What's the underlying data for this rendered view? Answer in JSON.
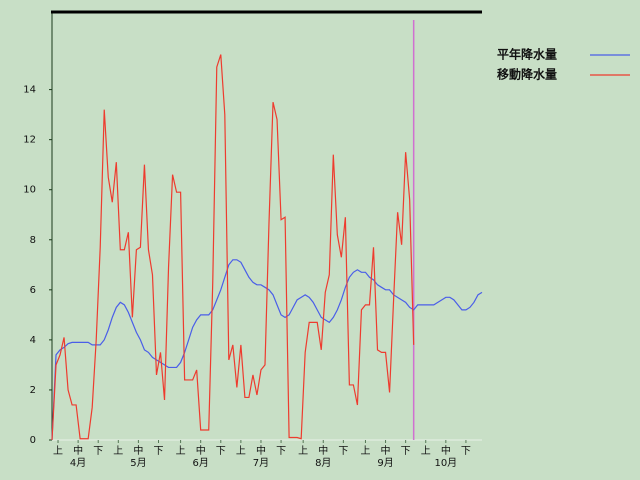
{
  "chart_data": {
    "type": "line",
    "x": [
      0,
      2,
      4,
      6,
      8,
      10,
      12,
      14,
      16,
      18,
      20,
      22,
      24,
      26,
      28,
      30,
      32,
      34,
      36,
      38,
      40,
      42,
      44,
      46,
      48,
      50,
      52,
      54,
      56,
      58,
      60,
      62,
      64,
      66,
      68,
      70,
      72,
      74,
      76,
      78,
      80,
      82,
      84,
      86,
      88,
      90,
      92,
      94,
      96,
      98,
      100,
      102,
      104,
      106,
      108,
      110,
      112,
      114,
      116,
      118,
      120,
      122,
      124,
      126,
      128,
      130,
      132,
      134,
      136,
      138,
      140,
      142,
      144,
      146,
      148,
      150,
      152,
      154,
      156,
      158,
      160,
      162,
      164,
      166,
      168,
      170,
      172,
      174,
      176,
      178,
      180,
      182,
      184,
      186,
      188,
      190,
      192,
      194,
      196,
      198,
      200,
      202,
      204,
      206,
      208,
      210,
      212,
      214
    ],
    "xlim": [
      0,
      214
    ],
    "xticks": [
      {
        "value": 3,
        "label": "上"
      },
      {
        "value": 13,
        "label": "中"
      },
      {
        "value": 23,
        "label": "下"
      },
      {
        "value": 33,
        "label": "上"
      },
      {
        "value": 43,
        "label": "中"
      },
      {
        "value": 53,
        "label": "下"
      },
      {
        "value": 64,
        "label": "上"
      },
      {
        "value": 74,
        "label": "中"
      },
      {
        "value": 84,
        "label": "下"
      },
      {
        "value": 94,
        "label": "上"
      },
      {
        "value": 104,
        "label": "中"
      },
      {
        "value": 114,
        "label": "下"
      },
      {
        "value": 125,
        "label": "上"
      },
      {
        "value": 135,
        "label": "中"
      },
      {
        "value": 145,
        "label": "下"
      },
      {
        "value": 156,
        "label": "上"
      },
      {
        "value": 166,
        "label": "中"
      },
      {
        "value": 176,
        "label": "下"
      },
      {
        "value": 186,
        "label": "上"
      },
      {
        "value": 196,
        "label": "中"
      },
      {
        "value": 206,
        "label": "下"
      }
    ],
    "month_labels": [
      {
        "value": 13,
        "label": "4月"
      },
      {
        "value": 43,
        "label": "5月"
      },
      {
        "value": 74,
        "label": "6月"
      },
      {
        "value": 104,
        "label": "7月"
      },
      {
        "value": 135,
        "label": "8月"
      },
      {
        "value": 166,
        "label": "9月"
      },
      {
        "value": 196,
        "label": "10月"
      }
    ],
    "ylim": [
      0,
      17.1
    ],
    "yticks": [
      0,
      2,
      4,
      6,
      8,
      10,
      12,
      14
    ],
    "legend": "right",
    "vline": {
      "x": 180,
      "color": "#d070d0"
    },
    "series": [
      {
        "name": "平年降水量",
        "color": "#4a5ee8",
        "values": [
          0,
          3.4,
          3.6,
          3.7,
          3.85,
          3.9,
          3.9,
          3.9,
          3.9,
          3.9,
          3.8,
          3.8,
          3.8,
          4.0,
          4.4,
          4.9,
          5.3,
          5.5,
          5.4,
          5.1,
          4.7,
          4.3,
          4.0,
          3.6,
          3.5,
          3.3,
          3.2,
          3.1,
          3.0,
          2.9,
          2.9,
          2.9,
          3.1,
          3.5,
          4.0,
          4.5,
          4.8,
          5.0,
          5.0,
          5.0,
          5.2,
          5.6,
          6.0,
          6.5,
          7.0,
          7.2,
          7.2,
          7.1,
          6.8,
          6.5,
          6.3,
          6.2,
          6.2,
          6.1,
          6.0,
          5.8,
          5.4,
          5.0,
          4.9,
          5.0,
          5.3,
          5.6,
          5.7,
          5.8,
          5.7,
          5.5,
          5.2,
          4.9,
          4.8,
          4.7,
          4.9,
          5.2,
          5.6,
          6.1,
          6.5,
          6.7,
          6.8,
          6.7,
          6.7,
          6.5,
          6.4,
          6.2,
          6.1,
          6.0,
          6.0,
          5.8,
          5.7,
          5.6,
          5.5,
          5.3,
          5.2,
          5.4,
          5.4,
          5.4,
          5.4,
          5.4,
          5.5,
          5.6,
          5.7,
          5.7,
          5.6,
          5.4,
          5.2,
          5.2,
          5.3,
          5.5,
          5.8,
          5.9
        ]
      },
      {
        "name": "移動降水量",
        "color": "#ee3b2e",
        "values": [
          0,
          3.0,
          3.4,
          4.1,
          2.0,
          1.4,
          1.4,
          0.05,
          0.05,
          0.05,
          1.3,
          4.0,
          7.7,
          13.2,
          10.5,
          9.5,
          11.1,
          7.6,
          7.6,
          8.3,
          4.9,
          7.6,
          7.7,
          11.0,
          7.6,
          6.6,
          2.6,
          3.5,
          1.6,
          6.9,
          10.6,
          9.9,
          9.9,
          2.4,
          2.4,
          2.4,
          2.8,
          0.4,
          0.4,
          0.4,
          6.3,
          14.9,
          15.4,
          13.0,
          3.2,
          3.8,
          2.1,
          3.8,
          1.7,
          1.7,
          2.6,
          1.8,
          2.8,
          3.0,
          8.7,
          13.5,
          12.8,
          8.8,
          8.9,
          0.1,
          0.1,
          0.1,
          0.05,
          3.5,
          4.7,
          4.7,
          4.7,
          3.6,
          5.9,
          6.6,
          11.4,
          8.2,
          7.3,
          8.9,
          2.2,
          2.2,
          1.4,
          5.2,
          5.4,
          5.4,
          7.7,
          3.6,
          3.5,
          3.5,
          1.9,
          5.6,
          9.1,
          7.8,
          11.5,
          9.6,
          3.8,
          null,
          null,
          null,
          null,
          null,
          null,
          null,
          null,
          null,
          null,
          null,
          null,
          null,
          null,
          null,
          null,
          null
        ]
      }
    ]
  }
}
